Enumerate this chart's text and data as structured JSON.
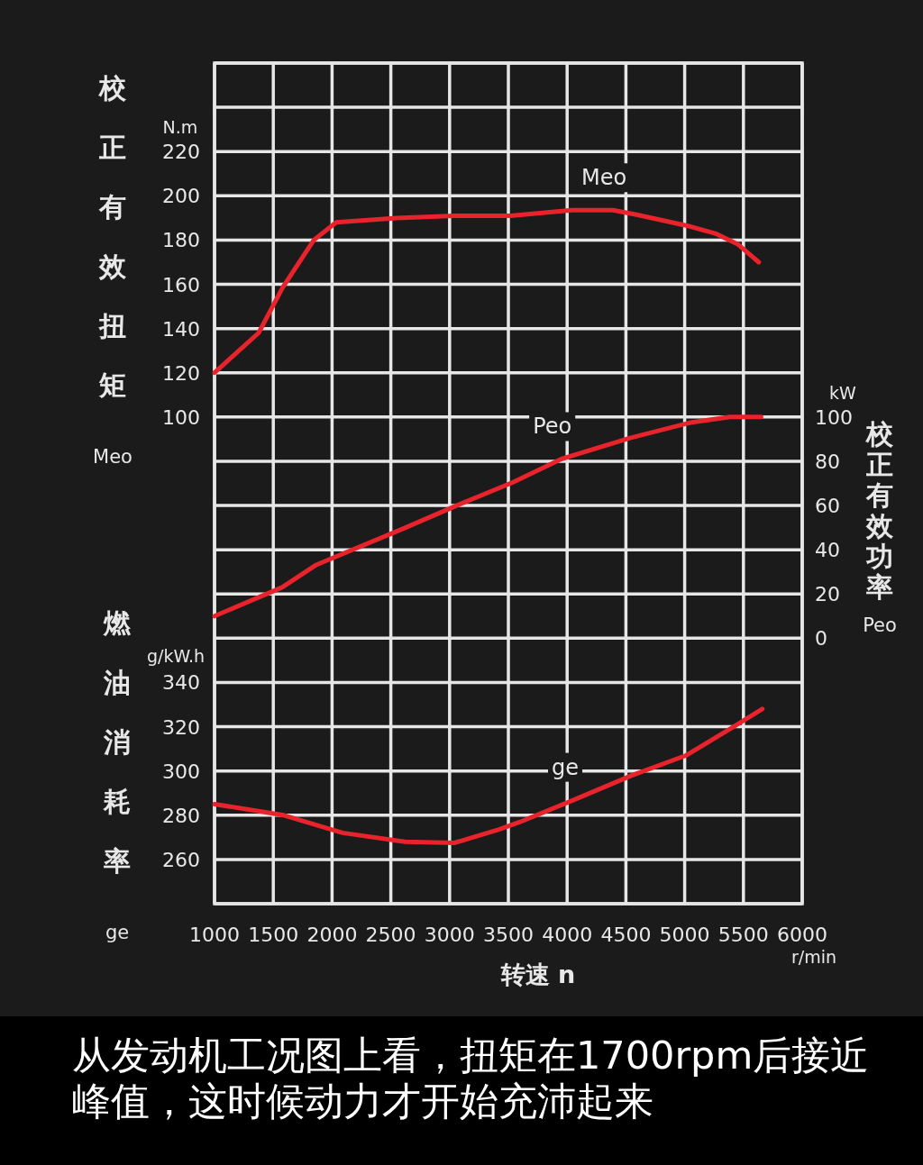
{
  "chart_data": {
    "type": "line",
    "ylabel": "校正有效扭矩Meo",
    "y2label": "校正有效功率Peo",
    "y3label": "燃油消耗率ge",
    "xlabel": "转速 n",
    "annotations": [
      "N.m",
      "kW",
      "g/kW.h",
      "r/min",
      "从发动机工况图上看，扭矩在1700rpm后接近峰值，这时候动力才开始充沛起来"
    ],
    "xlim": [
      1000,
      6000
    ],
    "xticks": [
      1000,
      1500,
      2000,
      2500,
      3000,
      3500,
      4000,
      4500,
      5000,
      5500,
      6000
    ],
    "ylim": [
      -120,
      260
    ],
    "yticks": [
      100,
      120,
      140,
      160,
      180,
      200,
      220
    ],
    "y2lim": [
      -120,
      260
    ],
    "y2ticks": [
      0,
      20,
      40,
      60,
      80,
      100
    ],
    "y3lim": [
      240,
      620
    ],
    "y3ticks": [
      260,
      280,
      300,
      320,
      340
    ],
    "grid": true,
    "line_style": "solid",
    "series": [
      {
        "name": "Meo",
        "color": "#e8232b",
        "x": [
          1000,
          1375,
          1580,
          1845,
          2035,
          2550,
          3040,
          3520,
          4040,
          4390,
          4590,
          5020,
          5260,
          5455,
          5630
        ],
        "values": [
          120,
          138,
          158.5,
          180,
          188,
          190,
          191,
          191,
          193.5,
          193.5,
          191.5,
          186.5,
          183,
          178,
          170
        ]
      },
      {
        "name": "Peo",
        "color": "#e8232b",
        "axis": "y2",
        "x": [
          1000,
          1575,
          1860,
          2580,
          3060,
          3540,
          3950,
          4535,
          5050,
          5385,
          5650
        ],
        "values": [
          10,
          23,
          33,
          49,
          60,
          70.5,
          81,
          90.5,
          97.5,
          100,
          100
        ]
      },
      {
        "name": "ge",
        "color": "#e8232b",
        "axis": "y3",
        "x": [
          1000,
          1590,
          2090,
          2620,
          3040,
          3420,
          3600,
          4060,
          4550,
          5010,
          5400,
          5660
        ],
        "values": [
          285,
          280,
          272,
          268,
          267.5,
          273.5,
          277,
          287,
          298,
          307,
          319.5,
          328
        ]
      }
    ]
  }
}
